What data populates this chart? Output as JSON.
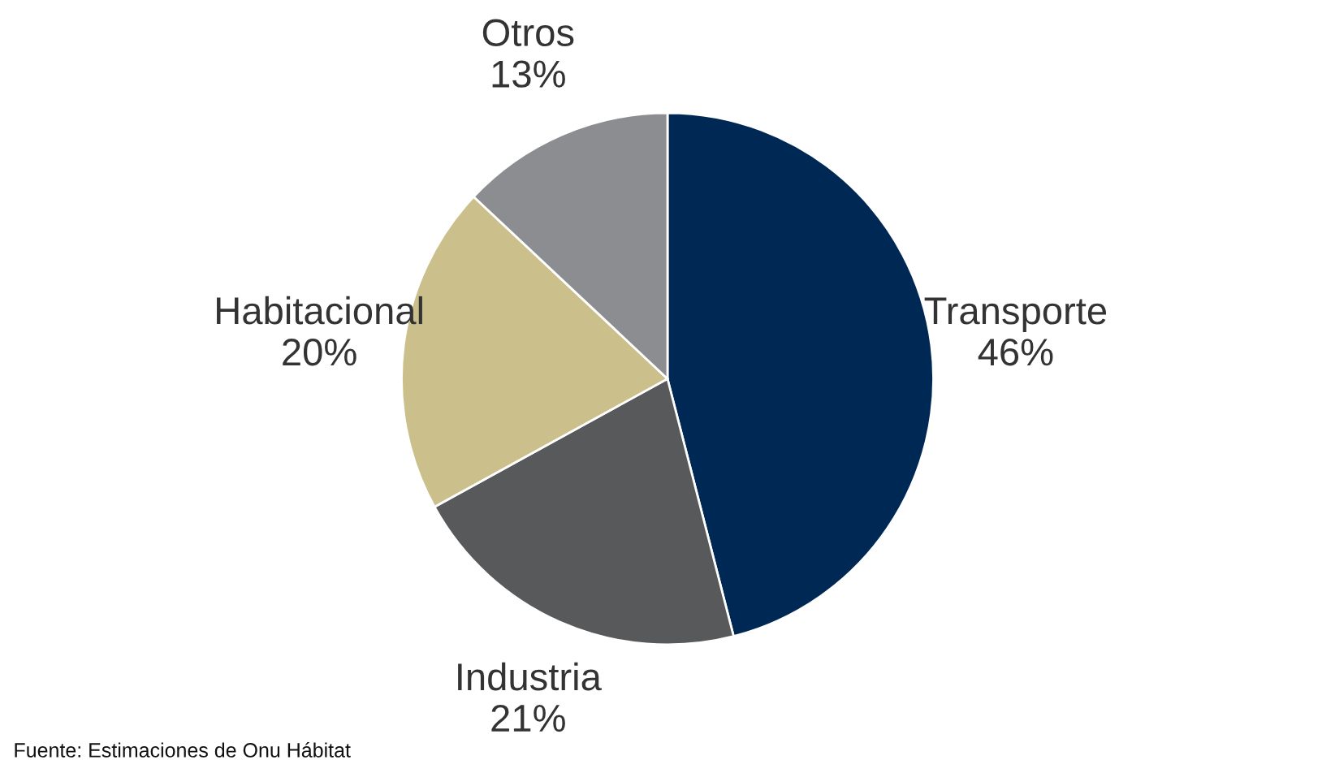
{
  "chart_data": {
    "type": "pie",
    "categories": [
      "Transporte",
      "Industria",
      "Habitacional",
      "Otros"
    ],
    "values": [
      46,
      21,
      20,
      13
    ],
    "value_labels": [
      "46%",
      "21%",
      "20%",
      "13%"
    ],
    "colors": [
      "#002855",
      "#58595b",
      "#cbc08b",
      "#8c8d91"
    ],
    "annotations": [
      "Fuente: Estimaciones de Onu Hábitat"
    ]
  }
}
